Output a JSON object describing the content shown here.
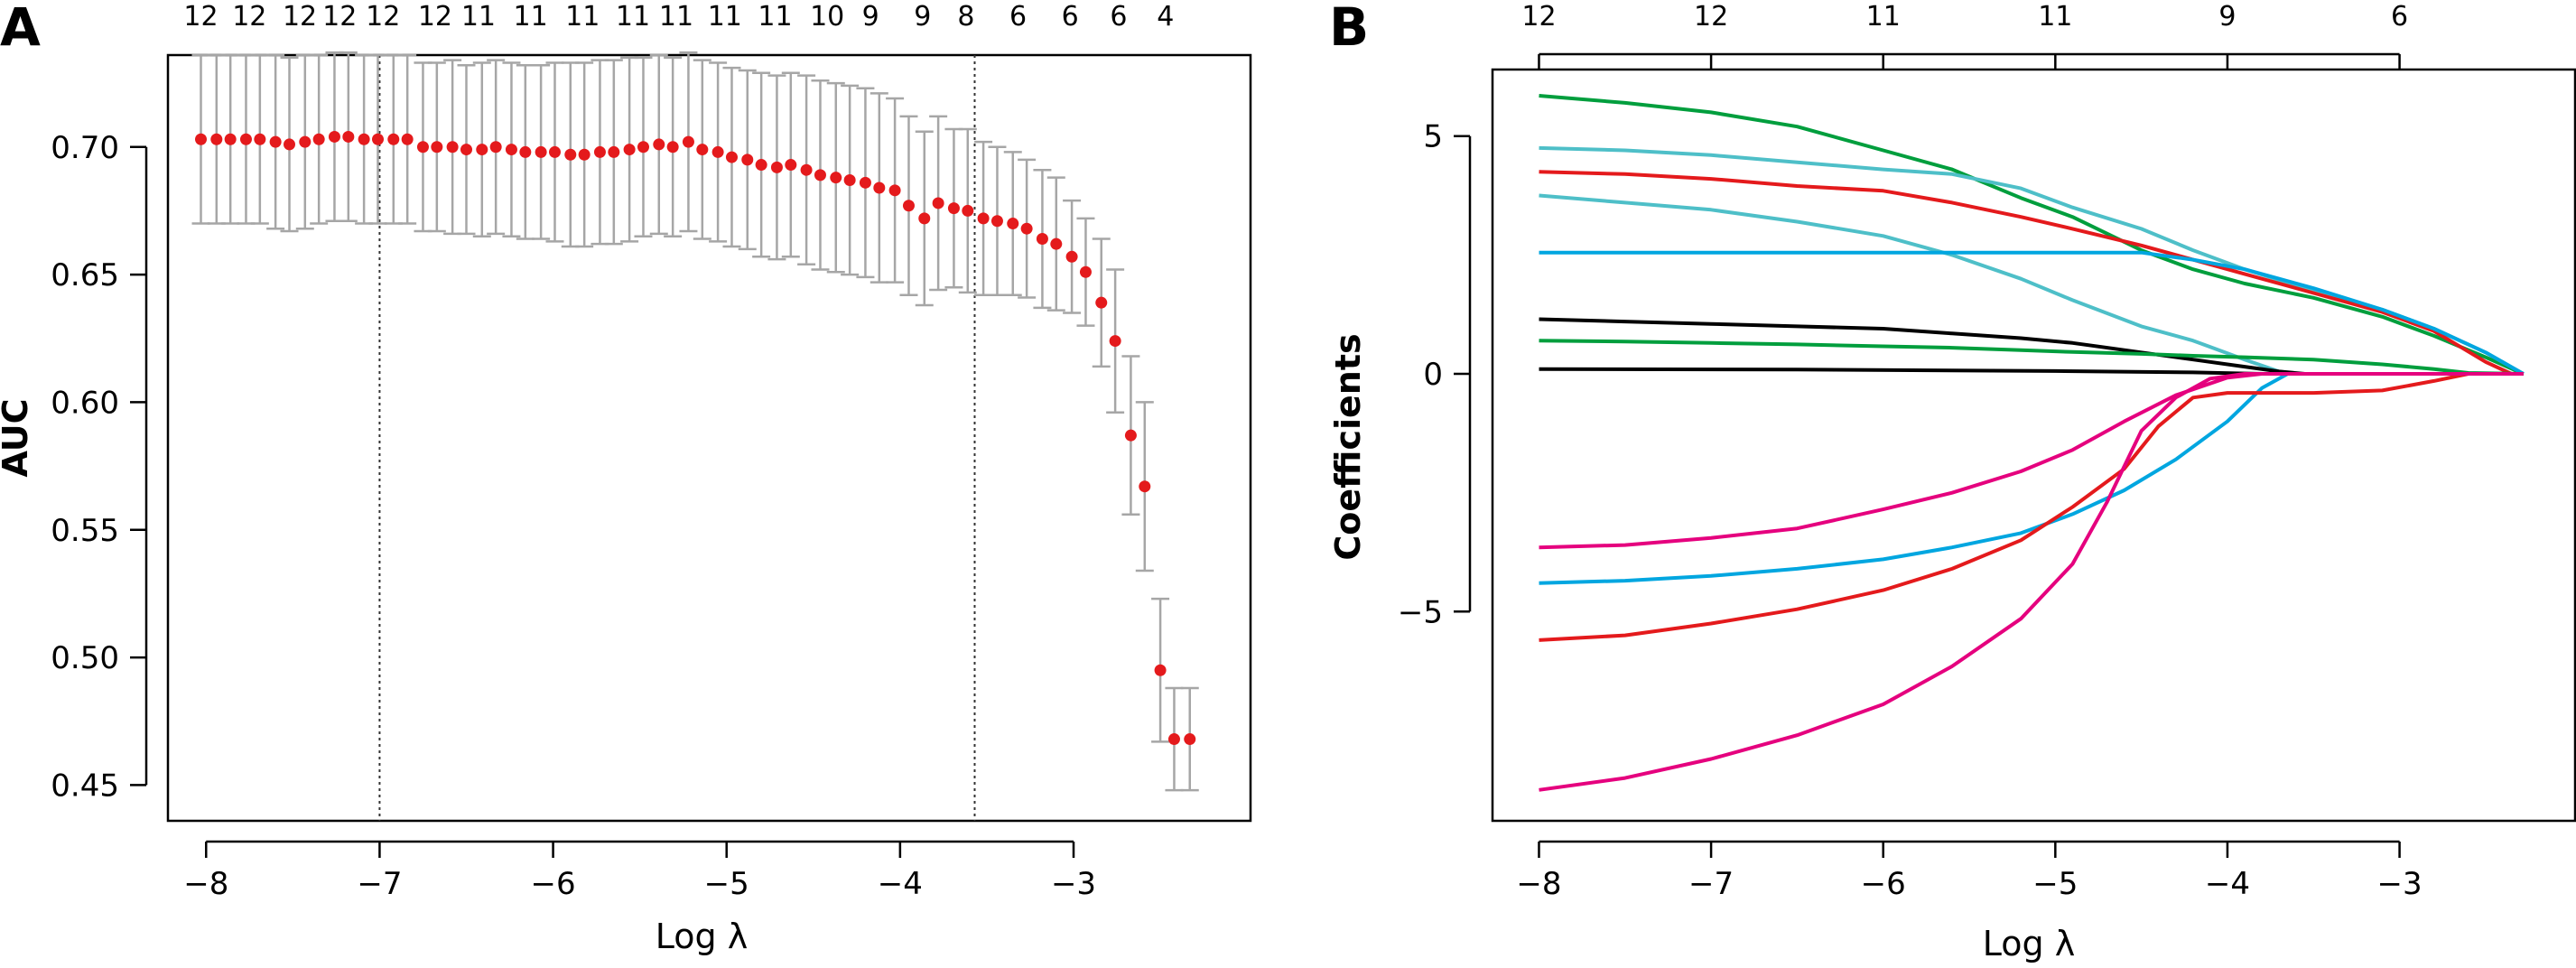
{
  "panels": {
    "a": {
      "letter": "A"
    },
    "b": {
      "letter": "B"
    }
  },
  "chart_data": [
    {
      "type": "scatter",
      "panel": "A",
      "xlabel": "Log λ",
      "ylabel": "AUC",
      "xlim": [
        -8.22,
        -1.98
      ],
      "ylim": [
        0.436,
        0.736
      ],
      "xticks": [
        -8,
        -7,
        -6,
        -5,
        -4,
        -3
      ],
      "xtick_labels": [
        "−8",
        "−7",
        "−6",
        "−5",
        "−4",
        "−3"
      ],
      "yticks": [
        0.45,
        0.5,
        0.55,
        0.6,
        0.65,
        0.7
      ],
      "ytick_labels": [
        "0.45",
        "0.50",
        "0.55",
        "0.60",
        "0.65",
        "0.70"
      ],
      "top_axis_positions": [
        -8.03,
        -7.75,
        -7.46,
        -7.23,
        -6.98,
        -6.68,
        -6.43,
        -6.13,
        -5.83,
        -5.54,
        -5.29,
        -5.01,
        -4.72,
        -4.42,
        -4.17,
        -3.87,
        -3.62,
        -3.32,
        -3.02,
        -2.74,
        -2.47
      ],
      "top_axis_labels": [
        "12",
        "12",
        "12",
        "12",
        "12",
        "12",
        "11",
        "11",
        "11",
        "11",
        "11",
        "11",
        "11",
        "10",
        "9",
        "9",
        "8",
        "6",
        "6",
        "6",
        "4"
      ],
      "vlines": [
        -7.0,
        -3.57
      ],
      "grid": false,
      "series": [
        {
          "x": [
            -8.03,
            -7.94,
            -7.86,
            -7.77,
            -7.69,
            -7.6,
            -7.52,
            -7.43,
            -7.35,
            -7.26,
            -7.18,
            -7.09,
            -7.01,
            -6.92,
            -6.84,
            -6.75,
            -6.67,
            -6.58,
            -6.5,
            -6.41,
            -6.33,
            -6.24,
            -6.16,
            -6.07,
            -5.99,
            -5.9,
            -5.82,
            -5.73,
            -5.65,
            -5.56,
            -5.48,
            -5.39,
            -5.31,
            -5.22,
            -5.14,
            -5.05,
            -4.97,
            -4.88,
            -4.8,
            -4.71,
            -4.63,
            -4.54,
            -4.46,
            -4.37,
            -4.29,
            -4.2,
            -4.12,
            -4.03,
            -3.95,
            -3.86,
            -3.78,
            -3.69,
            -3.61,
            -3.52,
            -3.44,
            -3.35,
            -3.27,
            -3.18,
            -3.1,
            -3.01,
            -2.93,
            -2.84,
            -2.76,
            -2.67,
            -2.59,
            -2.5,
            -2.42,
            -2.33
          ],
          "y": [
            0.703,
            0.703,
            0.703,
            0.703,
            0.703,
            0.702,
            0.701,
            0.702,
            0.703,
            0.704,
            0.704,
            0.703,
            0.703,
            0.703,
            0.703,
            0.7,
            0.7,
            0.7,
            0.699,
            0.699,
            0.7,
            0.699,
            0.698,
            0.698,
            0.698,
            0.697,
            0.697,
            0.698,
            0.698,
            0.699,
            0.7,
            0.701,
            0.7,
            0.702,
            0.699,
            0.698,
            0.696,
            0.695,
            0.693,
            0.692,
            0.693,
            0.691,
            0.689,
            0.688,
            0.687,
            0.686,
            0.684,
            0.683,
            0.677,
            0.672,
            0.678,
            0.676,
            0.675,
            0.672,
            0.671,
            0.67,
            0.668,
            0.664,
            0.662,
            0.657,
            0.651,
            0.639,
            0.624,
            0.587,
            0.567,
            0.495,
            0.468,
            0.468
          ],
          "upper": [
            0.736,
            0.736,
            0.736,
            0.736,
            0.736,
            0.736,
            0.735,
            0.736,
            0.736,
            0.737,
            0.737,
            0.736,
            0.736,
            0.736,
            0.736,
            0.733,
            0.733,
            0.734,
            0.732,
            0.733,
            0.734,
            0.733,
            0.732,
            0.732,
            0.733,
            0.733,
            0.733,
            0.734,
            0.734,
            0.735,
            0.735,
            0.736,
            0.735,
            0.737,
            0.734,
            0.733,
            0.731,
            0.73,
            0.729,
            0.728,
            0.729,
            0.728,
            0.726,
            0.725,
            0.724,
            0.723,
            0.721,
            0.719,
            0.712,
            0.706,
            0.712,
            0.707,
            0.707,
            0.702,
            0.7,
            0.698,
            0.695,
            0.691,
            0.688,
            0.679,
            0.672,
            0.664,
            0.652,
            0.618,
            0.6,
            0.523,
            0.488,
            0.488
          ],
          "lower": [
            0.67,
            0.67,
            0.67,
            0.67,
            0.67,
            0.668,
            0.667,
            0.668,
            0.67,
            0.671,
            0.671,
            0.67,
            0.67,
            0.67,
            0.67,
            0.667,
            0.667,
            0.666,
            0.666,
            0.665,
            0.666,
            0.665,
            0.664,
            0.664,
            0.663,
            0.661,
            0.661,
            0.662,
            0.662,
            0.663,
            0.665,
            0.666,
            0.665,
            0.667,
            0.664,
            0.663,
            0.661,
            0.66,
            0.657,
            0.656,
            0.657,
            0.654,
            0.652,
            0.651,
            0.65,
            0.649,
            0.647,
            0.647,
            0.642,
            0.638,
            0.644,
            0.645,
            0.643,
            0.642,
            0.642,
            0.642,
            0.641,
            0.637,
            0.636,
            0.635,
            0.63,
            0.614,
            0.596,
            0.556,
            0.534,
            0.467,
            0.448,
            0.448
          ],
          "point_color": "#e41a1c",
          "errorbar_color": "#a6a6a6"
        }
      ]
    },
    {
      "type": "line",
      "panel": "B",
      "xlabel": "Log λ",
      "ylabel": "Coefficients",
      "xlim": [
        -8.27,
        -1.98
      ],
      "ylim": [
        -9.4,
        6.4
      ],
      "xticks": [
        -8,
        -7,
        -6,
        -5,
        -4,
        -3
      ],
      "xtick_labels": [
        "−8",
        "−7",
        "−6",
        "−5",
        "−4",
        "−3"
      ],
      "yticks": [
        -5,
        0,
        5
      ],
      "ytick_labels": [
        "−5",
        "0",
        "5"
      ],
      "top_axis_positions": [
        -8,
        -7,
        -6,
        -5,
        -4,
        -3
      ],
      "top_axis_labels": [
        "12",
        "12",
        "11",
        "11",
        "9",
        "6"
      ],
      "grid": false,
      "series": [
        {
          "color": "#009e3d",
          "points": [
            [
              -8,
              5.85
            ],
            [
              -7.5,
              5.7
            ],
            [
              -7,
              5.5
            ],
            [
              -6.5,
              5.2
            ],
            [
              -6,
              4.7
            ],
            [
              -5.6,
              4.3
            ],
            [
              -5.2,
              3.7
            ],
            [
              -4.9,
              3.3
            ],
            [
              -4.5,
              2.6
            ],
            [
              -4.2,
              2.2
            ],
            [
              -3.9,
              1.9
            ],
            [
              -3.5,
              1.6
            ],
            [
              -3.1,
              1.2
            ],
            [
              -2.8,
              0.8
            ],
            [
              -2.5,
              0.35
            ],
            [
              -2.28,
              0.0
            ]
          ]
        },
        {
          "color": "#4ebfc8",
          "points": [
            [
              -8,
              4.75
            ],
            [
              -7.5,
              4.7
            ],
            [
              -7,
              4.6
            ],
            [
              -6.5,
              4.45
            ],
            [
              -6,
              4.3
            ],
            [
              -5.6,
              4.2
            ],
            [
              -5.2,
              3.9
            ],
            [
              -4.9,
              3.5
            ],
            [
              -4.5,
              3.05
            ],
            [
              -4.2,
              2.6
            ],
            [
              -3.9,
              2.2
            ],
            [
              -3.5,
              1.75
            ],
            [
              -3.1,
              1.35
            ],
            [
              -2.8,
              0.95
            ],
            [
              -2.5,
              0.45
            ],
            [
              -2.28,
              0.0
            ]
          ]
        },
        {
          "color": "#e41a1c",
          "points": [
            [
              -8,
              4.25
            ],
            [
              -7.5,
              4.2
            ],
            [
              -7,
              4.1
            ],
            [
              -6.5,
              3.95
            ],
            [
              -6,
              3.85
            ],
            [
              -5.6,
              3.6
            ],
            [
              -5.2,
              3.3
            ],
            [
              -4.9,
              3.05
            ],
            [
              -4.5,
              2.7
            ],
            [
              -4.2,
              2.4
            ],
            [
              -3.9,
              2.1
            ],
            [
              -3.5,
              1.7
            ],
            [
              -3.1,
              1.3
            ],
            [
              -2.8,
              0.9
            ],
            [
              -2.5,
              0.25
            ],
            [
              -2.35,
              0.0
            ],
            [
              -2.28,
              0.0
            ]
          ]
        },
        {
          "color": "#4ebfc8",
          "points": [
            [
              -8,
              3.75
            ],
            [
              -7.5,
              3.6
            ],
            [
              -7,
              3.45
            ],
            [
              -6.5,
              3.2
            ],
            [
              -6,
              2.9
            ],
            [
              -5.6,
              2.5
            ],
            [
              -5.2,
              2.0
            ],
            [
              -4.9,
              1.55
            ],
            [
              -4.5,
              1.0
            ],
            [
              -4.2,
              0.7
            ],
            [
              -3.9,
              0.3
            ],
            [
              -3.7,
              0.05
            ],
            [
              -3.6,
              0.0
            ],
            [
              -2.28,
              0.0
            ]
          ]
        },
        {
          "color": "#00a6e0",
          "points": [
            [
              -8,
              2.55
            ],
            [
              -4.5,
              2.55
            ],
            [
              -4.2,
              2.4
            ],
            [
              -3.9,
              2.2
            ],
            [
              -3.5,
              1.8
            ],
            [
              -3.1,
              1.35
            ],
            [
              -2.8,
              0.95
            ],
            [
              -2.5,
              0.45
            ],
            [
              -2.28,
              0.0
            ]
          ]
        },
        {
          "color": "#000000",
          "points": [
            [
              -8,
              1.15
            ],
            [
              -7.5,
              1.1
            ],
            [
              -7,
              1.05
            ],
            [
              -6.5,
              1.0
            ],
            [
              -6,
              0.95
            ],
            [
              -5.6,
              0.85
            ],
            [
              -5.2,
              0.75
            ],
            [
              -4.9,
              0.65
            ],
            [
              -4.5,
              0.45
            ],
            [
              -4.2,
              0.3
            ],
            [
              -3.9,
              0.15
            ],
            [
              -3.7,
              0.05
            ],
            [
              -3.55,
              0.0
            ],
            [
              -2.28,
              0.0
            ]
          ]
        },
        {
          "color": "#009e3d",
          "points": [
            [
              -8,
              0.7
            ],
            [
              -7.5,
              0.68
            ],
            [
              -7,
              0.65
            ],
            [
              -6.5,
              0.62
            ],
            [
              -6,
              0.58
            ],
            [
              -5.6,
              0.55
            ],
            [
              -5.2,
              0.5
            ],
            [
              -4.9,
              0.46
            ],
            [
              -4.5,
              0.42
            ],
            [
              -4.2,
              0.38
            ],
            [
              -3.9,
              0.35
            ],
            [
              -3.5,
              0.3
            ],
            [
              -3.1,
              0.2
            ],
            [
              -2.8,
              0.1
            ],
            [
              -2.6,
              0.02
            ],
            [
              -2.28,
              0.0
            ]
          ]
        },
        {
          "color": "#000000",
          "points": [
            [
              -8,
              0.1
            ],
            [
              -6.5,
              0.09
            ],
            [
              -5,
              0.06
            ],
            [
              -4.2,
              0.03
            ],
            [
              -3.8,
              0.0
            ],
            [
              -2.28,
              0.0
            ]
          ]
        },
        {
          "color": "#e5007e",
          "points": [
            [
              -8,
              -3.65
            ],
            [
              -7.5,
              -3.6
            ],
            [
              -7,
              -3.45
            ],
            [
              -6.5,
              -3.25
            ],
            [
              -6,
              -2.85
            ],
            [
              -5.6,
              -2.5
            ],
            [
              -5.2,
              -2.05
            ],
            [
              -4.9,
              -1.6
            ],
            [
              -4.6,
              -1.0
            ],
            [
              -4.3,
              -0.45
            ],
            [
              -4.0,
              -0.08
            ],
            [
              -3.8,
              0.0
            ],
            [
              -2.28,
              0.0
            ]
          ]
        },
        {
          "color": "#00a6e0",
          "points": [
            [
              -8,
              -4.4
            ],
            [
              -7.5,
              -4.35
            ],
            [
              -7,
              -4.25
            ],
            [
              -6.5,
              -4.1
            ],
            [
              -6,
              -3.9
            ],
            [
              -5.6,
              -3.65
            ],
            [
              -5.2,
              -3.35
            ],
            [
              -4.9,
              -2.95
            ],
            [
              -4.6,
              -2.45
            ],
            [
              -4.3,
              -1.8
            ],
            [
              -4.0,
              -1.0
            ],
            [
              -3.8,
              -0.3
            ],
            [
              -3.65,
              0.0
            ],
            [
              -2.28,
              0.0
            ]
          ]
        },
        {
          "color": "#e41a1c",
          "points": [
            [
              -8,
              -5.6
            ],
            [
              -7.5,
              -5.5
            ],
            [
              -7,
              -5.25
            ],
            [
              -6.5,
              -4.95
            ],
            [
              -6,
              -4.55
            ],
            [
              -5.6,
              -4.1
            ],
            [
              -5.2,
              -3.5
            ],
            [
              -4.9,
              -2.8
            ],
            [
              -4.6,
              -2.0
            ],
            [
              -4.4,
              -1.1
            ],
            [
              -4.2,
              -0.5
            ],
            [
              -4.0,
              -0.4
            ],
            [
              -3.5,
              -0.4
            ],
            [
              -3.1,
              -0.35
            ],
            [
              -2.8,
              -0.15
            ],
            [
              -2.6,
              0.0
            ],
            [
              -2.28,
              0.0
            ]
          ]
        },
        {
          "color": "#e5007e",
          "points": [
            [
              -8,
              -8.75
            ],
            [
              -7.5,
              -8.5
            ],
            [
              -7,
              -8.1
            ],
            [
              -6.5,
              -7.6
            ],
            [
              -6,
              -6.95
            ],
            [
              -5.6,
              -6.15
            ],
            [
              -5.2,
              -5.15
            ],
            [
              -4.9,
              -4.0
            ],
            [
              -4.7,
              -2.7
            ],
            [
              -4.5,
              -1.2
            ],
            [
              -4.3,
              -0.5
            ],
            [
              -4.1,
              -0.1
            ],
            [
              -3.9,
              0.0
            ],
            [
              -2.28,
              0.0
            ]
          ]
        }
      ]
    }
  ]
}
